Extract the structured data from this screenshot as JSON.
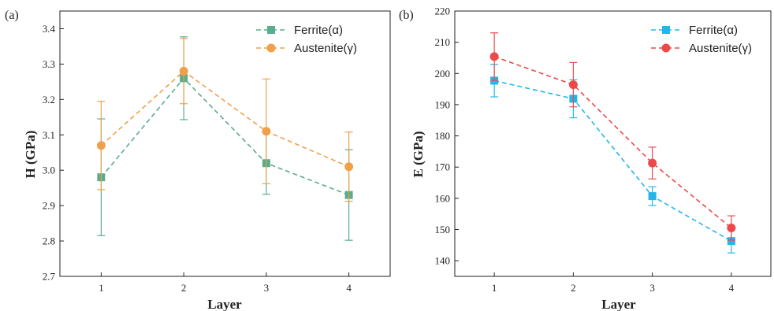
{
  "chart_data": [
    {
      "type": "line",
      "panel_label": "(a)",
      "title": "",
      "xlabel": "Layer",
      "ylabel": "H (GPa)",
      "categories": [
        "1",
        "2",
        "3",
        "4"
      ],
      "x": [
        1,
        2,
        3,
        4
      ],
      "xlim": [
        0.5,
        4.5
      ],
      "ylim": [
        2.7,
        3.45
      ],
      "yticks": [
        "2.7",
        "2.8",
        "2.9",
        "3.0",
        "3.1",
        "3.2",
        "3.3",
        "3.4"
      ],
      "grid": false,
      "legend_position": "top-right",
      "series": [
        {
          "name": "Ferrite(α)",
          "color": "#5aac8c",
          "marker": "square",
          "line_style": "dashed",
          "values": [
            2.98,
            3.26,
            3.02,
            2.93
          ],
          "error": [
            0.165,
            0.117,
            0.088,
            0.128
          ]
        },
        {
          "name": "Austenite(γ)",
          "color": "#f0a04b",
          "marker": "circle",
          "line_style": "dashed",
          "values": [
            3.07,
            3.28,
            3.11,
            3.01
          ],
          "error": [
            0.125,
            0.092,
            0.148,
            0.098
          ]
        }
      ]
    },
    {
      "type": "line",
      "panel_label": "(b)",
      "title": "",
      "xlabel": "Layer",
      "ylabel": "E (GPa)",
      "categories": [
        "1",
        "2",
        "3",
        "4"
      ],
      "x": [
        1,
        2,
        3,
        4
      ],
      "xlim": [
        0.5,
        4.5
      ],
      "ylim": [
        135,
        220
      ],
      "yticks": [
        "140",
        "150",
        "160",
        "170",
        "180",
        "190",
        "200",
        "210",
        "220"
      ],
      "grid": false,
      "legend_position": "top-right",
      "series": [
        {
          "name": "Ferrite(α)",
          "color": "#22b7e8",
          "marker": "square",
          "line_style": "dashed",
          "values": [
            197.7,
            191.9,
            160.7,
            146.3
          ],
          "error": [
            5.2,
            6.1,
            3.0,
            3.8
          ]
        },
        {
          "name": "Austenite(γ)",
          "color": "#ec4a4a",
          "marker": "circle",
          "line_style": "dashed",
          "values": [
            205.4,
            196.4,
            171.3,
            150.5
          ],
          "error": [
            7.6,
            7.1,
            5.1,
            3.9
          ]
        }
      ]
    }
  ]
}
